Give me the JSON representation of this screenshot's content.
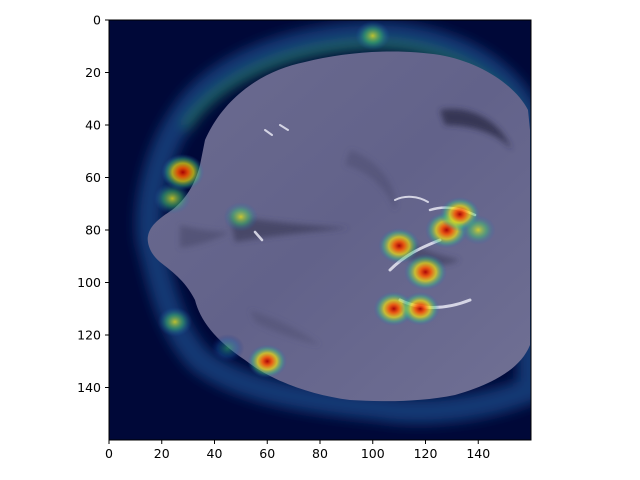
{
  "chart_data": {
    "type": "heatmap",
    "image_size": [
      160,
      160
    ],
    "xlim": [
      0,
      160
    ],
    "ylim": [
      160,
      0
    ],
    "x_ticks": [
      0,
      20,
      40,
      60,
      80,
      100,
      120,
      140
    ],
    "y_ticks": [
      0,
      20,
      40,
      60,
      80,
      100,
      120,
      140
    ],
    "x_tick_labels": [
      "0",
      "20",
      "40",
      "60",
      "80",
      "100",
      "120",
      "140"
    ],
    "y_tick_labels": [
      "0",
      "20",
      "40",
      "60",
      "80",
      "100",
      "120",
      "140"
    ],
    "grid": false,
    "colormap": "jet",
    "hotspots": [
      {
        "x": 28,
        "y": 58,
        "level": 0.95
      },
      {
        "x": 24,
        "y": 68,
        "level": 0.7
      },
      {
        "x": 50,
        "y": 75,
        "level": 0.6
      },
      {
        "x": 110,
        "y": 86,
        "level": 0.9
      },
      {
        "x": 120,
        "y": 96,
        "level": 0.95
      },
      {
        "x": 128,
        "y": 80,
        "level": 0.95
      },
      {
        "x": 133,
        "y": 74,
        "level": 0.85
      },
      {
        "x": 108,
        "y": 110,
        "level": 0.85
      },
      {
        "x": 118,
        "y": 110,
        "level": 0.8
      },
      {
        "x": 60,
        "y": 130,
        "level": 0.8
      },
      {
        "x": 45,
        "y": 125,
        "level": 0.55
      },
      {
        "x": 25,
        "y": 115,
        "level": 0.6
      },
      {
        "x": 100,
        "y": 6,
        "level": 0.6
      },
      {
        "x": 140,
        "y": 80,
        "level": 0.6
      }
    ]
  }
}
